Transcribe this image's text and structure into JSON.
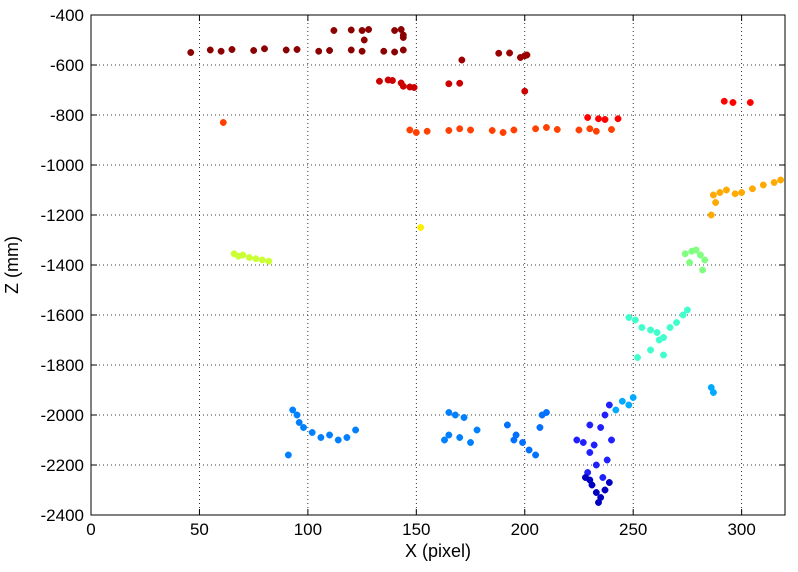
{
  "chart_data": {
    "type": "scatter",
    "title": "",
    "xlabel": "X (pixel)",
    "ylabel": "Z (mm)",
    "xlim": [
      0,
      320
    ],
    "ylim": [
      -2400,
      -400
    ],
    "xticks": [
      0,
      50,
      100,
      150,
      200,
      250,
      300
    ],
    "yticks": [
      -400,
      -600,
      -800,
      -1000,
      -1200,
      -1400,
      -1600,
      -1800,
      -2000,
      -2200,
      -2400
    ],
    "grid": true,
    "grid_style": "dotted",
    "colormap": "jet",
    "color_encoding": "depth (Z) mapped to jet colormap; shallow = dark red, deep = dark blue",
    "clusters": [
      {
        "name": "",
        "color": "#8b0000",
        "points": [
          [
            46,
            -550
          ],
          [
            55,
            -540
          ],
          [
            65,
            -538
          ],
          [
            80,
            -535
          ],
          [
            95,
            -538
          ],
          [
            110,
            -542
          ],
          [
            125,
            -545
          ],
          [
            140,
            -548
          ],
          [
            144,
            -540
          ],
          [
            60,
            -545
          ],
          [
            75,
            -542
          ],
          [
            90,
            -540
          ],
          [
            105,
            -545
          ],
          [
            120,
            -540
          ],
          [
            135,
            -545
          ]
        ]
      },
      {
        "name": "",
        "color": "#8b0000",
        "points": [
          [
            112,
            -462
          ],
          [
            120,
            -460
          ],
          [
            125,
            -462
          ],
          [
            128,
            -458
          ],
          [
            140,
            -462
          ],
          [
            143,
            -458
          ],
          [
            144,
            -480
          ],
          [
            144,
            -490
          ],
          [
            126,
            -500
          ]
        ]
      },
      {
        "name": "",
        "color": "#9a0000",
        "points": [
          [
            188,
            -553
          ],
          [
            193,
            -552
          ],
          [
            198,
            -570
          ],
          [
            200,
            -563
          ],
          [
            201,
            -560
          ],
          [
            171,
            -580
          ]
        ]
      },
      {
        "name": "",
        "color": "#cc0000",
        "points": [
          [
            133,
            -665
          ],
          [
            137,
            -660
          ],
          [
            139,
            -662
          ],
          [
            143,
            -672
          ],
          [
            144,
            -685
          ],
          [
            147,
            -688
          ],
          [
            149,
            -690
          ],
          [
            165,
            -675
          ],
          [
            170,
            -673
          ],
          [
            200,
            -705
          ]
        ]
      },
      {
        "name": "",
        "color": "#ff0000",
        "points": [
          [
            292,
            -745
          ],
          [
            296,
            -750
          ],
          [
            304,
            -750
          ],
          [
            229,
            -810
          ],
          [
            234,
            -815
          ],
          [
            237,
            -818
          ],
          [
            243,
            -815
          ]
        ]
      },
      {
        "name": "",
        "color": "#ff4000",
        "points": [
          [
            61,
            -830
          ],
          [
            147,
            -860
          ],
          [
            155,
            -865
          ],
          [
            165,
            -862
          ],
          [
            175,
            -860
          ],
          [
            185,
            -862
          ],
          [
            195,
            -860
          ],
          [
            205,
            -855
          ],
          [
            215,
            -858
          ],
          [
            225,
            -860
          ],
          [
            233,
            -865
          ],
          [
            240,
            -858
          ],
          [
            150,
            -870
          ],
          [
            170,
            -855
          ],
          [
            190,
            -870
          ],
          [
            210,
            -850
          ],
          [
            230,
            -855
          ]
        ]
      },
      {
        "name": "",
        "color": "#ffaa00",
        "points": [
          [
            287,
            -1120
          ],
          [
            290,
            -1110
          ],
          [
            293,
            -1100
          ],
          [
            297,
            -1115
          ],
          [
            300,
            -1110
          ],
          [
            305,
            -1095
          ],
          [
            310,
            -1080
          ],
          [
            315,
            -1070
          ],
          [
            318,
            -1060
          ],
          [
            286,
            -1200
          ],
          [
            288,
            -1150
          ]
        ]
      },
      {
        "name": "",
        "color": "#ffee00",
        "points": [
          [
            152,
            -1250
          ]
        ]
      },
      {
        "name": "",
        "color": "#ccff33",
        "points": [
          [
            66,
            -1355
          ],
          [
            70,
            -1360
          ],
          [
            73,
            -1370
          ],
          [
            76,
            -1375
          ],
          [
            79,
            -1380
          ],
          [
            82,
            -1385
          ],
          [
            68,
            -1365
          ]
        ]
      },
      {
        "name": "",
        "color": "#80ff80",
        "points": [
          [
            274,
            -1355
          ],
          [
            277,
            -1345
          ],
          [
            279,
            -1340
          ],
          [
            281,
            -1360
          ],
          [
            283,
            -1380
          ],
          [
            282,
            -1420
          ],
          [
            276,
            -1390
          ]
        ]
      },
      {
        "name": "",
        "color": "#40ffcc",
        "points": [
          [
            248,
            -1610
          ],
          [
            251,
            -1620
          ],
          [
            254,
            -1650
          ],
          [
            258,
            -1660
          ],
          [
            261,
            -1670
          ],
          [
            264,
            -1690
          ],
          [
            267,
            -1650
          ],
          [
            270,
            -1630
          ],
          [
            273,
            -1600
          ],
          [
            275,
            -1580
          ],
          [
            262,
            -1700
          ],
          [
            258,
            -1740
          ],
          [
            264,
            -1760
          ],
          [
            252,
            -1770
          ]
        ]
      },
      {
        "name": "",
        "color": "#00aaff",
        "points": [
          [
            245,
            -1945
          ],
          [
            248,
            -1960
          ],
          [
            242,
            -1980
          ],
          [
            250,
            -1930
          ],
          [
            286,
            -1890
          ],
          [
            287,
            -1910
          ]
        ]
      },
      {
        "name": "",
        "color": "#0080ff",
        "points": [
          [
            93,
            -1980
          ],
          [
            95,
            -2000
          ],
          [
            98,
            -2050
          ],
          [
            102,
            -2070
          ],
          [
            106,
            -2090
          ],
          [
            110,
            -2080
          ],
          [
            114,
            -2100
          ],
          [
            118,
            -2090
          ],
          [
            122,
            -2060
          ],
          [
            96,
            -2030
          ],
          [
            91,
            -2160
          ]
        ]
      },
      {
        "name": "",
        "color": "#0080ff",
        "points": [
          [
            165,
            -1990
          ],
          [
            168,
            -2000
          ],
          [
            172,
            -2010
          ],
          [
            165,
            -2080
          ],
          [
            170,
            -2090
          ],
          [
            175,
            -2110
          ],
          [
            178,
            -2060
          ],
          [
            163,
            -2100
          ]
        ]
      },
      {
        "name": "",
        "color": "#0070ff",
        "points": [
          [
            192,
            -2040
          ],
          [
            196,
            -2080
          ],
          [
            199,
            -2110
          ],
          [
            202,
            -2140
          ],
          [
            205,
            -2160
          ],
          [
            207,
            -2050
          ],
          [
            210,
            -1990
          ],
          [
            208,
            -2000
          ],
          [
            195,
            -2100
          ]
        ]
      },
      {
        "name": "",
        "color": "#2020ff",
        "points": [
          [
            224,
            -2100
          ],
          [
            227,
            -2110
          ],
          [
            230,
            -2150
          ],
          [
            233,
            -2200
          ],
          [
            229,
            -2230
          ],
          [
            236,
            -2250
          ],
          [
            238,
            -2180
          ],
          [
            240,
            -2100
          ],
          [
            235,
            -2050
          ],
          [
            230,
            -2040
          ],
          [
            237,
            -2000
          ],
          [
            239,
            -1960
          ],
          [
            232,
            -2120
          ]
        ]
      },
      {
        "name": "",
        "color": "#0000c0",
        "points": [
          [
            228,
            -2250
          ],
          [
            231,
            -2280
          ],
          [
            233,
            -2310
          ],
          [
            235,
            -2330
          ],
          [
            234,
            -2350
          ],
          [
            237,
            -2300
          ],
          [
            239,
            -2270
          ],
          [
            230,
            -2260
          ]
        ]
      }
    ]
  }
}
